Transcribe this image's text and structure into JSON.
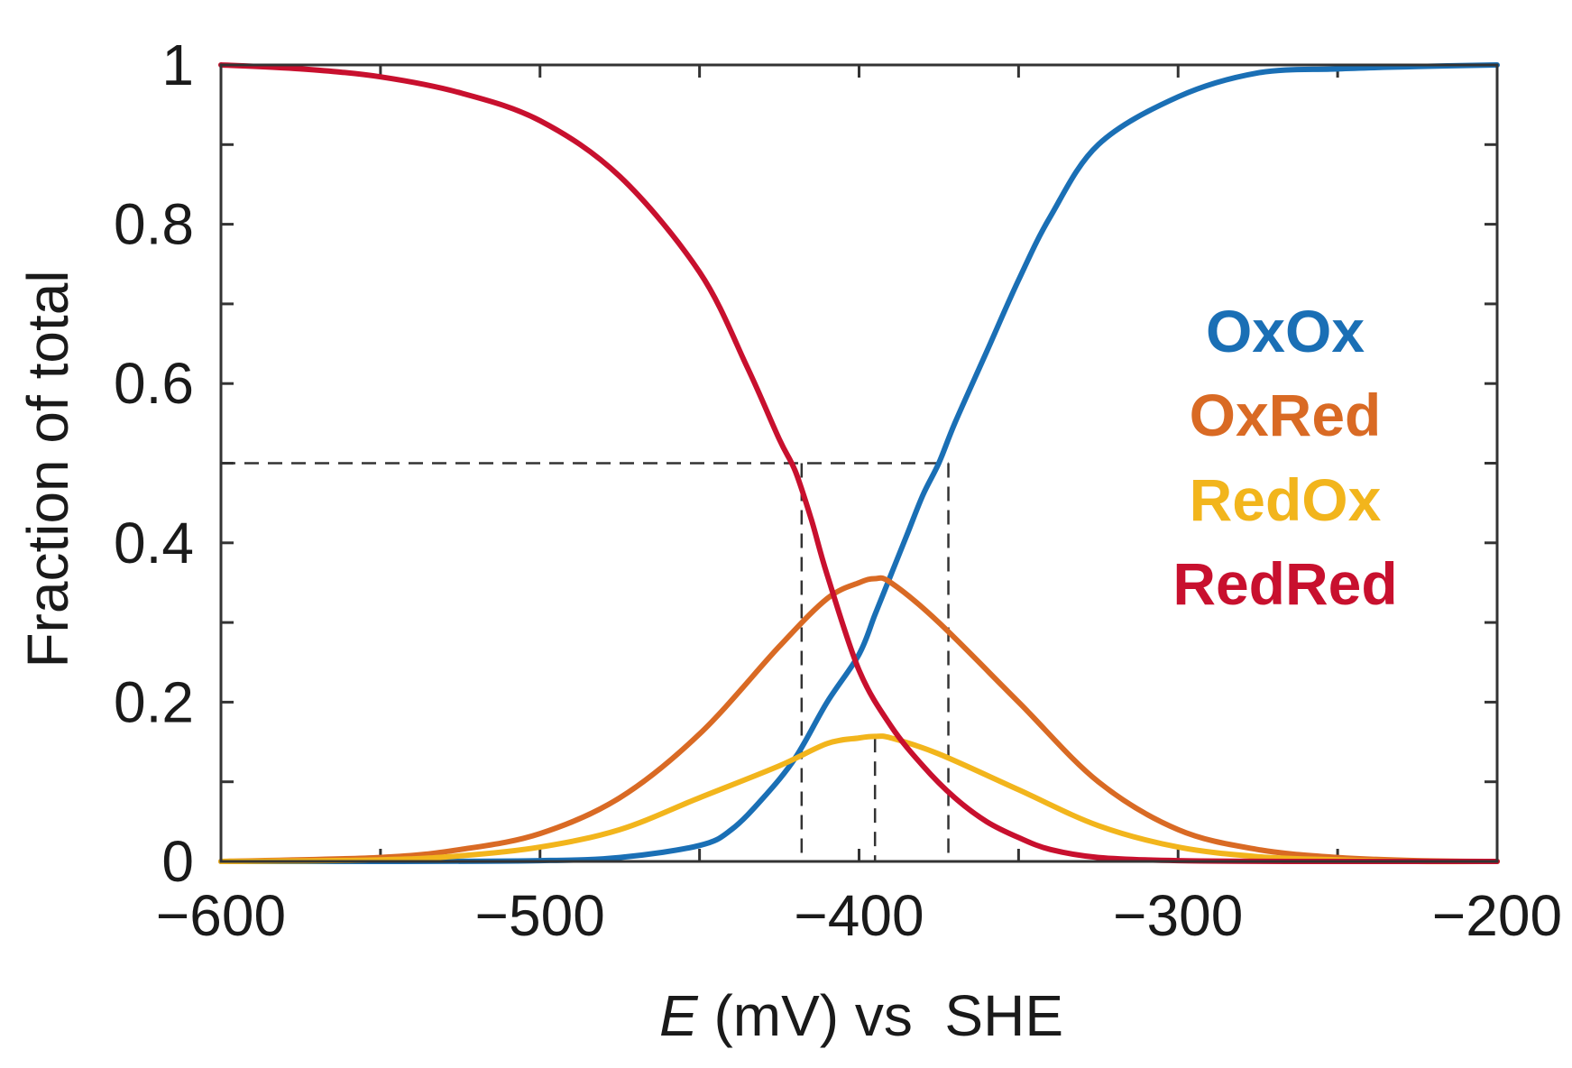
{
  "chart_data": {
    "type": "line",
    "xlabel_italic": "E",
    "xlabel_rest": " (mV) vs  SHE",
    "ylabel": "Fraction of total",
    "xlim": [
      -600,
      -200
    ],
    "ylim": [
      0,
      1
    ],
    "x_ticks": [
      -600,
      -500,
      -400,
      -300,
      -200
    ],
    "x_tick_labels": [
      "−600",
      "−500",
      "−400",
      "−300",
      "−200"
    ],
    "y_ticks": [
      0,
      0.2,
      0.4,
      0.6,
      0.8,
      1
    ],
    "y_tick_labels": [
      "0",
      "0.2",
      "0.4",
      "0.6",
      "0.8",
      "1"
    ],
    "x_minor_step": 50,
    "y_minor_step": 0.1,
    "grid": false,
    "legend_position": "right",
    "series": [
      {
        "name": "OxOx",
        "color": "#1a6fb5",
        "x": [
          -600,
          -550,
          -500,
          -475,
          -450,
          -440,
          -430,
          -420,
          -410,
          -400,
          -395,
          -390,
          -385,
          -380,
          -375,
          -370,
          -360,
          -350,
          -340,
          -325,
          -300,
          -275,
          -250,
          -225,
          -200
        ],
        "values": [
          0.0,
          0.0,
          0.001,
          0.005,
          0.02,
          0.04,
          0.08,
          0.13,
          0.2,
          0.26,
          0.31,
          0.36,
          0.41,
          0.46,
          0.5,
          0.55,
          0.64,
          0.73,
          0.81,
          0.9,
          0.96,
          0.99,
          0.995,
          0.998,
          1.0
        ]
      },
      {
        "name": "OxRed",
        "color": "#d96a24",
        "x": [
          -600,
          -550,
          -525,
          -500,
          -475,
          -450,
          -425,
          -410,
          -400,
          -395,
          -390,
          -375,
          -350,
          -325,
          -300,
          -275,
          -250,
          -225,
          -200
        ],
        "values": [
          0.0,
          0.005,
          0.015,
          0.035,
          0.08,
          0.16,
          0.27,
          0.33,
          0.35,
          0.355,
          0.35,
          0.3,
          0.2,
          0.1,
          0.04,
          0.015,
          0.005,
          0.001,
          0.0
        ]
      },
      {
        "name": "RedOx",
        "color": "#f2b51c",
        "x": [
          -600,
          -550,
          -525,
          -500,
          -475,
          -450,
          -425,
          -410,
          -400,
          -395,
          -390,
          -375,
          -350,
          -325,
          -300,
          -275,
          -250,
          -225,
          -200
        ],
        "values": [
          0.0,
          0.002,
          0.007,
          0.018,
          0.04,
          0.08,
          0.12,
          0.148,
          0.155,
          0.157,
          0.155,
          0.135,
          0.09,
          0.045,
          0.018,
          0.006,
          0.002,
          0.0,
          0.0
        ]
      },
      {
        "name": "RedRed",
        "color": "#c8102e",
        "x": [
          -600,
          -575,
          -550,
          -525,
          -500,
          -475,
          -450,
          -435,
          -425,
          -420,
          -415,
          -410,
          -400,
          -390,
          -380,
          -370,
          -360,
          -350,
          -340,
          -325,
          -300,
          -250,
          -200
        ],
        "values": [
          1.0,
          0.995,
          0.985,
          0.965,
          0.93,
          0.86,
          0.74,
          0.62,
          0.53,
          0.49,
          0.43,
          0.36,
          0.24,
          0.17,
          0.12,
          0.08,
          0.05,
          0.03,
          0.015,
          0.005,
          0.001,
          0.0,
          0.0
        ]
      }
    ],
    "reference_lines": {
      "y_half": 0.5,
      "x_left": -418,
      "x_center": -395,
      "x_right": -372,
      "center_top": 0.155
    }
  }
}
